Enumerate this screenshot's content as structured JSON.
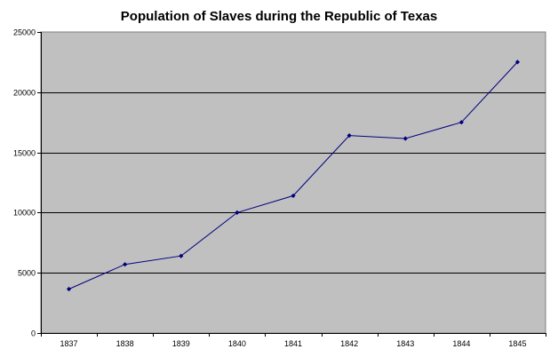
{
  "chart_data": {
    "type": "line",
    "title": "Population of Slaves during the Republic of Texas",
    "xlabel": "",
    "ylabel": "",
    "categories": [
      "1837",
      "1838",
      "1839",
      "1840",
      "1841",
      "1842",
      "1843",
      "1844",
      "1845"
    ],
    "series": [
      {
        "values": [
          3650,
          5700,
          6400,
          10000,
          11400,
          16400,
          16150,
          17500,
          22500
        ]
      }
    ],
    "ylim": [
      0,
      25000
    ],
    "yticks": [
      "0",
      "5000",
      "10000",
      "15000",
      "20000",
      "25000"
    ],
    "grid": "horizontal",
    "legend": "none",
    "colors": {
      "plot_background": "#c0c0c0",
      "line": "#000080",
      "marker": "#000080",
      "gridline": "#000000"
    }
  }
}
